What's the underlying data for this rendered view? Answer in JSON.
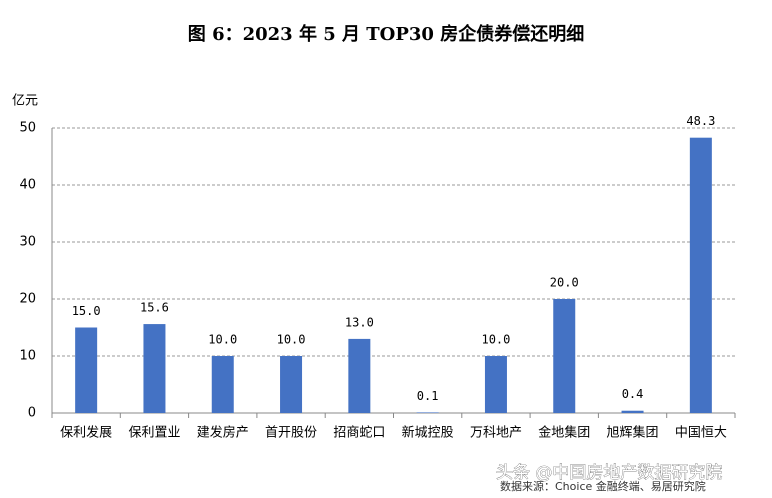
{
  "chart_data": {
    "type": "bar",
    "title": "图 6：2023 年 5 月 TOP30 房企债券偿还明细",
    "y_label": "亿元",
    "categories": [
      "保利发展",
      "保利置业",
      "建发房产",
      "首开股份",
      "招商蛇口",
      "新城控股",
      "万科地产",
      "金地集团",
      "旭辉集团",
      "中国恒大"
    ],
    "values": [
      15.0,
      15.6,
      10.0,
      10.0,
      13.0,
      0.1,
      10.0,
      20.0,
      0.4,
      48.3
    ],
    "value_labels": [
      "15.0",
      "15.6",
      "10.0",
      "10.0",
      "13.0",
      "0.1",
      "10.0",
      "20.0",
      "0.4",
      "48.3"
    ],
    "color": "#4472c4",
    "ylim": [
      0,
      50
    ],
    "yticks": [
      0,
      10,
      20,
      30,
      40,
      50
    ],
    "grid": true,
    "source": "数据来源：Choice 金融终端、易居研究院",
    "watermark": "头条 @中国房地产数据研究院"
  }
}
